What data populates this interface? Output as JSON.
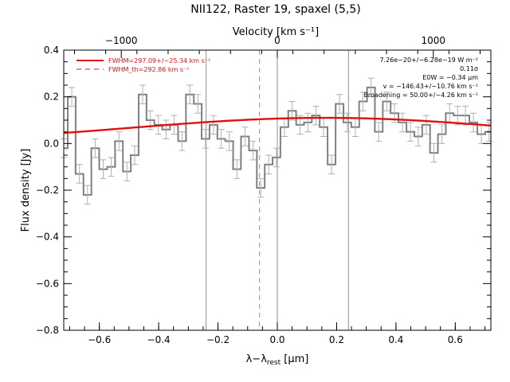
{
  "chart_data": {
    "type": "line",
    "title": "NII122, Raster 19, spaxel (5,5)",
    "top_axis_label": "Velocity [km s⁻¹]",
    "top_ticks": [
      "−1000",
      "0",
      "1000"
    ],
    "top_tick_values": [
      -1000,
      0,
      1000
    ],
    "xlabel": "λ−λ",
    "xlabel_sub": "rest",
    "xlabel_unit": " [μm]",
    "ylabel": "Flux density [Jy]",
    "xlim": [
      -0.72,
      0.72
    ],
    "ylim": [
      -0.8,
      0.4
    ],
    "x_ticks": [
      "−0.6",
      "−0.4",
      "−0.2",
      "0.0",
      "0.2",
      "0.4",
      "0.6"
    ],
    "x_tick_values": [
      -0.6,
      -0.4,
      -0.2,
      0.0,
      0.2,
      0.4,
      0.6
    ],
    "y_ticks": [
      "−0.8",
      "−0.6",
      "−0.4",
      "−0.2",
      "0.0",
      "0.2",
      "0.4"
    ],
    "y_tick_values": [
      -0.8,
      -0.6,
      -0.4,
      -0.2,
      0.0,
      0.2,
      0.4
    ],
    "legend": [
      {
        "text": "FWHM=297.09+/−25.34 km s⁻¹",
        "style": "solid"
      },
      {
        "text": "FWHM_th=292.86 km s⁻¹",
        "style": "dashed"
      }
    ],
    "annotations": [
      "7.26e−20+/−6.28e−19 W m⁻²",
      "0.11σ",
      "E0W = −0.34 μm",
      "v = −146.43+/−10.76 km s⁻¹",
      "Broadening = 50.00+/−4.26 km s⁻¹"
    ],
    "vertical_lines": [
      {
        "x": -0.24,
        "style": "solid"
      },
      {
        "x": -0.06,
        "style": "dashed"
      },
      {
        "x": 0.0,
        "style": "solid"
      },
      {
        "x": 0.24,
        "style": "solid"
      }
    ],
    "series": [
      {
        "type": "step",
        "color": "#808080",
        "bin_width": 0.0265,
        "x": [
          -0.72,
          -0.693,
          -0.667,
          -0.64,
          -0.614,
          -0.587,
          -0.56,
          -0.534,
          -0.507,
          -0.481,
          -0.454,
          -0.428,
          -0.401,
          -0.375,
          -0.348,
          -0.321,
          -0.295,
          -0.268,
          -0.242,
          -0.215,
          -0.189,
          -0.162,
          -0.136,
          -0.109,
          -0.082,
          -0.056,
          -0.029,
          -0.003,
          0.024,
          0.05,
          0.077,
          0.103,
          0.13,
          0.156,
          0.183,
          0.21,
          0.236,
          0.263,
          0.289,
          0.316,
          0.342,
          0.369,
          0.395,
          0.422,
          0.449,
          0.475,
          0.502,
          0.528,
          0.555,
          0.581,
          0.608,
          0.634,
          0.661,
          0.688,
          0.714
        ],
        "y": [
          -0.02,
          0.2,
          -0.13,
          -0.22,
          -0.02,
          -0.11,
          -0.1,
          0.01,
          -0.12,
          -0.05,
          0.21,
          0.1,
          0.08,
          0.06,
          0.08,
          0.01,
          0.21,
          0.17,
          0.02,
          0.08,
          0.02,
          0.01,
          -0.11,
          0.03,
          -0.03,
          -0.19,
          -0.09,
          -0.06,
          0.07,
          0.14,
          0.08,
          0.09,
          0.12,
          0.07,
          -0.09,
          0.17,
          0.09,
          0.07,
          0.18,
          0.24,
          0.05,
          0.18,
          0.13,
          0.09,
          0.05,
          0.03,
          0.08,
          -0.04,
          0.04,
          0.13,
          0.12,
          0.12,
          0.09,
          0.04,
          0.05
        ],
        "errors": 0.04
      },
      {
        "type": "gaussian_fit",
        "color": "#e01010",
        "center": 0.16,
        "amplitude": 0.11,
        "sigma_um": 0.66
      }
    ],
    "grid": false
  }
}
